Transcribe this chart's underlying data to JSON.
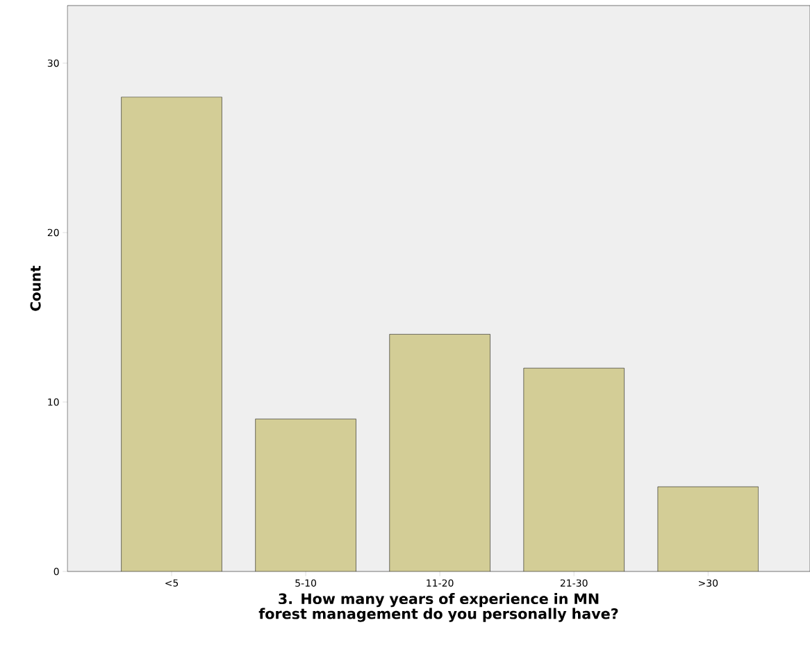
{
  "chart_data": {
    "type": "bar",
    "xlabel": "3. How many years of experience in MN forest management do you personally have?",
    "ylabel": "Count",
    "categories": [
      "<5",
      "5-10",
      "11-20",
      "21-30",
      ">30"
    ],
    "values": [
      28,
      9,
      14,
      12,
      5
    ],
    "color": "#d3cd96",
    "ylim": [
      0,
      33.4
    ],
    "yticks": [
      0,
      10,
      20,
      30
    ]
  }
}
